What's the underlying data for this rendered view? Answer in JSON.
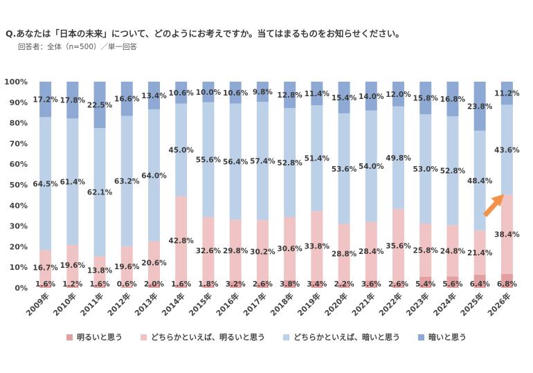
{
  "title": {
    "question": "Q.あなたは「日本の未来」について、どのようにお考えですか。当てはまるものをお知らせください。",
    "respondents": "回答者：全体（n=500）／単一回答"
  },
  "chart_data": {
    "type": "bar",
    "stacked": true,
    "normalized": true,
    "categories": [
      "2009年",
      "2010年",
      "2011年",
      "2012年",
      "2013年",
      "2014年",
      "2015年",
      "2016年",
      "2017年",
      "2018年",
      "2019年",
      "2020年",
      "2021年",
      "2022年",
      "2023年",
      "2024年",
      "2025年",
      "2026年"
    ],
    "series": [
      {
        "name": "明るいと思う",
        "color": "#e2a0a0",
        "values": [
          1.6,
          1.2,
          1.6,
          0.6,
          2.0,
          1.6,
          1.8,
          3.2,
          2.6,
          3.8,
          3.4,
          2.2,
          3.6,
          2.6,
          5.4,
          5.6,
          6.4,
          6.8
        ]
      },
      {
        "name": "どちらかといえば、明るいと思う",
        "color": "#f0c4c4",
        "values": [
          16.7,
          19.6,
          13.8,
          19.6,
          20.6,
          42.8,
          32.6,
          29.8,
          30.2,
          30.6,
          33.8,
          28.8,
          28.4,
          35.6,
          25.8,
          24.8,
          21.4,
          38.4
        ]
      },
      {
        "name": "どちらかといえば、暗いと思う",
        "color": "#bcd0e8",
        "values": [
          64.5,
          61.4,
          62.1,
          63.2,
          64.0,
          45.0,
          55.6,
          56.4,
          57.4,
          52.8,
          51.4,
          53.6,
          54.0,
          49.8,
          53.0,
          52.8,
          48.4,
          43.6
        ]
      },
      {
        "name": "暗いと思う",
        "color": "#8eaad4",
        "values": [
          17.2,
          17.8,
          22.5,
          16.6,
          13.4,
          10.6,
          10.0,
          10.6,
          9.8,
          12.8,
          11.4,
          15.4,
          14.0,
          12.0,
          15.8,
          16.8,
          23.8,
          11.2
        ]
      }
    ],
    "ytick_labels": [
      "0%",
      "10%",
      "20%",
      "30%",
      "40%",
      "50%",
      "60%",
      "70%",
      "80%",
      "90%",
      "100%"
    ],
    "ylim": [
      0,
      100
    ],
    "grid": false,
    "legend_position": "bottom",
    "annotation": "orange-arrow-up",
    "annotation_color": "#f4924a",
    "annotation_category": "2026年"
  }
}
